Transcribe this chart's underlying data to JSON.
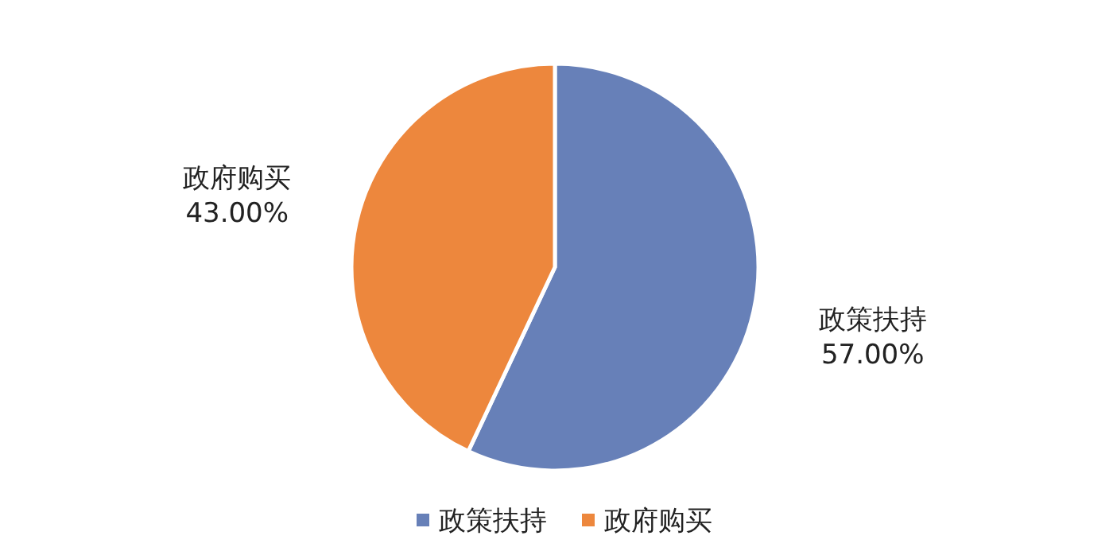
{
  "chart_data": {
    "type": "pie",
    "categories": [
      "政策扶持",
      "政府购买"
    ],
    "values": [
      57,
      43
    ],
    "colors": [
      "#6780b8",
      "#ed873d"
    ],
    "value_labels": [
      "57.00%",
      "43.00%"
    ],
    "legend": "bottom"
  }
}
